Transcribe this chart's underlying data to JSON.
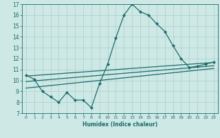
{
  "xlabel": "Humidex (Indice chaleur)",
  "bg_color": "#cde8e5",
  "line_color": "#1a6b6b",
  "grid_color": "#aacfcc",
  "xlim": [
    -0.5,
    23.5
  ],
  "ylim": [
    7,
    17
  ],
  "xticks": [
    0,
    1,
    2,
    3,
    4,
    5,
    6,
    7,
    8,
    9,
    10,
    11,
    12,
    13,
    14,
    15,
    16,
    17,
    18,
    19,
    20,
    21,
    22,
    23
  ],
  "yticks": [
    7,
    8,
    9,
    10,
    11,
    12,
    13,
    14,
    15,
    16,
    17
  ],
  "main_series": {
    "x": [
      0,
      1,
      2,
      3,
      4,
      5,
      6,
      7,
      8,
      9,
      10,
      11,
      12,
      13,
      14,
      15,
      16,
      17,
      18,
      19,
      20,
      21,
      22,
      23
    ],
    "y": [
      10.5,
      10.1,
      9.0,
      8.5,
      8.0,
      8.9,
      8.2,
      8.2,
      7.5,
      9.7,
      11.5,
      13.9,
      16.0,
      17.0,
      16.3,
      16.0,
      15.2,
      14.5,
      13.2,
      12.0,
      11.2,
      11.3,
      11.5,
      11.7
    ]
  },
  "trend_lines": [
    {
      "x": [
        0,
        23
      ],
      "y": [
        10.4,
        11.65
      ]
    },
    {
      "x": [
        0,
        23
      ],
      "y": [
        9.3,
        11.1
      ]
    },
    {
      "x": [
        0,
        23
      ],
      "y": [
        9.9,
        11.35
      ]
    }
  ]
}
